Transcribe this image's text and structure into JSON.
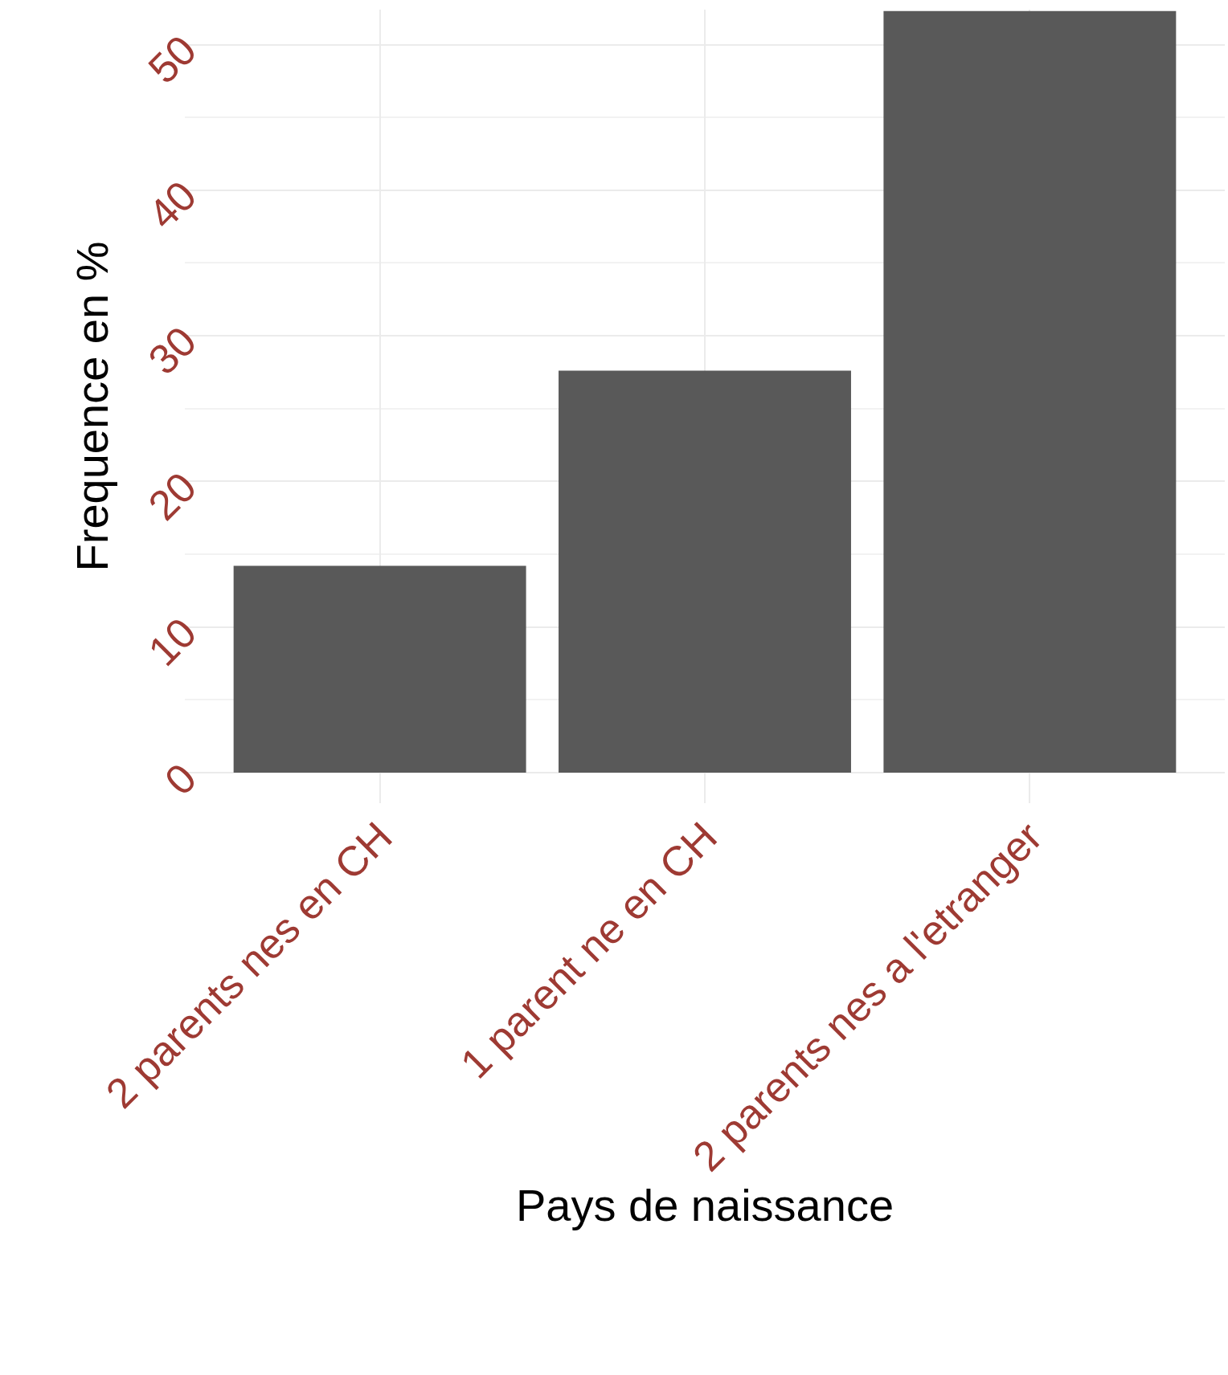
{
  "chart_data": {
    "type": "bar",
    "xlabel": "Pays de naissance",
    "ylabel": "Frequence en %",
    "categories": [
      "2 parents nes en CH",
      "1 parent ne en CH",
      "2 parents nes a l'etranger"
    ],
    "values": [
      14.2,
      27.6,
      52.3
    ],
    "color": "#595959",
    "ylim": [
      -2.1,
      52.4
    ],
    "yticks": [
      0,
      10,
      20,
      30,
      40,
      50
    ],
    "grid": true,
    "legend": false
  }
}
